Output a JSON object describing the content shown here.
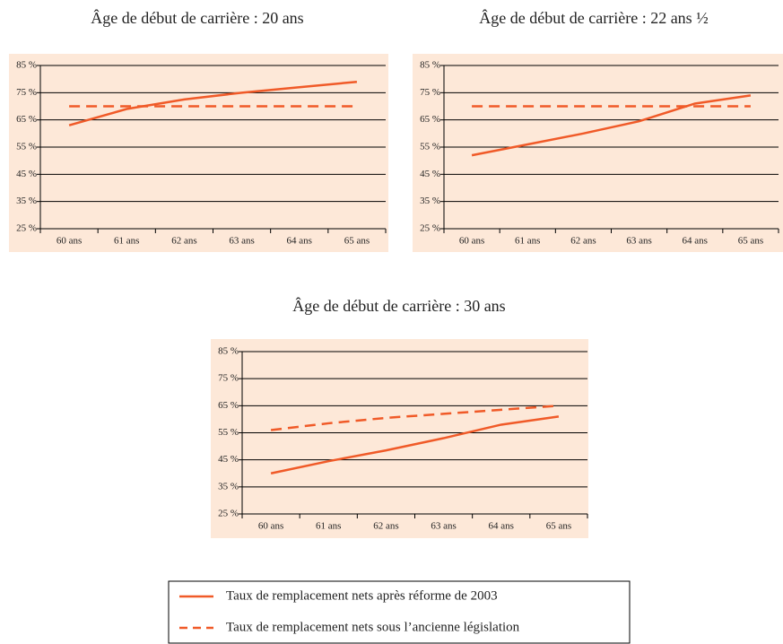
{
  "chart_data": [
    {
      "type": "line",
      "title": "Âge de début de carrière : 20 ans",
      "categories": [
        "60 ans",
        "61 ans",
        "62 ans",
        "63 ans",
        "64 ans",
        "65 ans"
      ],
      "series": [
        {
          "color": "#f05a28",
          "dashed": false,
          "values": [
            63,
            69,
            72.5,
            75,
            77,
            79
          ]
        },
        {
          "color": "#f05a28",
          "dashed": true,
          "values": [
            70,
            70,
            70,
            70,
            70,
            70
          ]
        }
      ],
      "ylim": [
        25,
        85
      ],
      "yticks": [
        {
          "value": 25,
          "label": "25 %"
        },
        {
          "value": 35,
          "label": "35 %"
        },
        {
          "value": 45,
          "label": "45 %"
        },
        {
          "value": 55,
          "label": "55 %"
        },
        {
          "value": 65,
          "label": "65 %"
        },
        {
          "value": 75,
          "label": "75 %"
        },
        {
          "value": 85,
          "label": "85 %"
        }
      ],
      "grid": true
    },
    {
      "type": "line",
      "title": "Âge de début de carrière : 22 ans ½",
      "categories": [
        "60 ans",
        "61 ans",
        "62 ans",
        "63 ans",
        "64 ans",
        "65 ans"
      ],
      "series": [
        {
          "color": "#f05a28",
          "dashed": false,
          "values": [
            52,
            56,
            60,
            64.5,
            71,
            74
          ]
        },
        {
          "color": "#f05a28",
          "dashed": true,
          "values": [
            70,
            70,
            70,
            70,
            70,
            70
          ]
        }
      ],
      "ylim": [
        25,
        85
      ],
      "yticks": [
        {
          "value": 25,
          "label": "25 %"
        },
        {
          "value": 35,
          "label": "35 %"
        },
        {
          "value": 45,
          "label": "45 %"
        },
        {
          "value": 55,
          "label": "55 %"
        },
        {
          "value": 65,
          "label": "65 %"
        },
        {
          "value": 75,
          "label": "75 %"
        },
        {
          "value": 85,
          "label": "85 %"
        }
      ],
      "grid": true
    },
    {
      "type": "line",
      "title": "Âge de début de carrière : 30 ans",
      "categories": [
        "60 ans",
        "61 ans",
        "62 ans",
        "63 ans",
        "64 ans",
        "65 ans"
      ],
      "series": [
        {
          "color": "#f05a28",
          "dashed": false,
          "values": [
            40,
            44.5,
            48.5,
            53,
            58,
            61
          ]
        },
        {
          "color": "#f05a28",
          "dashed": true,
          "values": [
            56,
            58.5,
            60.5,
            62,
            63.5,
            65
          ]
        }
      ],
      "ylim": [
        25,
        85
      ],
      "yticks": [
        {
          "value": 25,
          "label": "25 %"
        },
        {
          "value": 35,
          "label": "35 %"
        },
        {
          "value": 45,
          "label": "45 %"
        },
        {
          "value": 55,
          "label": "55 %"
        },
        {
          "value": 65,
          "label": "65 %"
        },
        {
          "value": 75,
          "label": "75 %"
        },
        {
          "value": 85,
          "label": "85 %"
        }
      ],
      "grid": true
    }
  ],
  "legend": {
    "items": [
      {
        "label": "Taux de remplacement nets après réforme de 2003",
        "color": "#f05a28",
        "dashed": false
      },
      {
        "label": "Taux de remplacement nets sous l’ancienne législation",
        "color": "#f05a28",
        "dashed": true
      }
    ]
  }
}
